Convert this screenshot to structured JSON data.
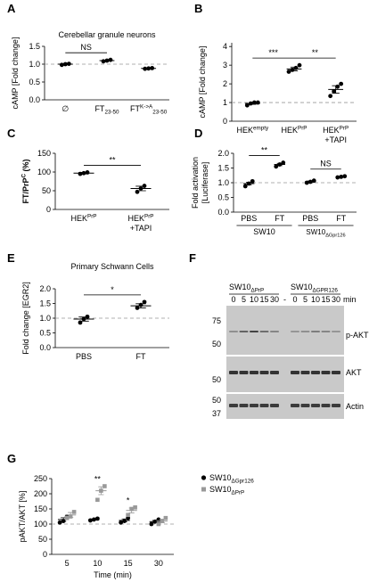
{
  "chart_data": [
    {
      "type": "dot",
      "panel": "A",
      "title": "Cerebellar granule neurons",
      "ylabel": "cAMP [Fold change]",
      "categories": [
        "∅",
        [
          "FT",
          {
            "sub": "23-50"
          }
        ],
        [
          "FT",
          {
            "sup": "K->A"
          },
          {
            "sub": "23-50"
          }
        ]
      ],
      "values": [
        1.0,
        1.1,
        0.88
      ],
      "errors": [
        0.01,
        0.01,
        0.01
      ],
      "points": [
        [
          0.98,
          1.0,
          1.01
        ],
        [
          1.08,
          1.1,
          1.12
        ],
        [
          0.87,
          0.88,
          0.89
        ]
      ],
      "color": "#000000",
      "ylim": [
        0,
        1.5
      ],
      "yticks": [
        {
          "value": 0,
          "label": "0.0"
        },
        0.5,
        {
          "value": 1,
          "label": "1.0"
        },
        1.5
      ],
      "refline": 1,
      "annotations": [
        {
          "text": "NS",
          "from": 0,
          "to": 1
        }
      ]
    },
    {
      "type": "dot",
      "panel": "B",
      "ylabel": "cAMP [Fold change]",
      "categories": [
        [
          "HEK",
          {
            "sup": "empty"
          }
        ],
        [
          "HEK",
          {
            "sup": "PrP"
          }
        ],
        [
          "HEK",
          {
            "sup": "PrP"
          },
          {
            "nl": "+TAPI"
          }
        ]
      ],
      "values": [
        0.95,
        2.8,
        1.7
      ],
      "errors": [
        0.05,
        0.1,
        0.2
      ],
      "points": [
        [
          0.85,
          0.95,
          1.0,
          1.0
        ],
        [
          2.65,
          2.75,
          2.85,
          3.0
        ],
        [
          1.35,
          1.6,
          1.85,
          2.0
        ]
      ],
      "color": "#000000",
      "ylim": [
        0,
        4.2
      ],
      "yticks": [
        0,
        1,
        2,
        3,
        4
      ],
      "refline": 1,
      "annotations": [
        {
          "text": "***",
          "from": 0,
          "to": 1
        },
        {
          "text": "**",
          "from": 1,
          "to": 2
        }
      ]
    },
    {
      "type": "dot",
      "panel": "C",
      "ylabel": [
        "FT/PrP",
        {
          "sup": "C"
        },
        " (%)"
      ],
      "categories": [
        [
          "HEK",
          {
            "sup": "PrP"
          }
        ],
        [
          "HEK",
          {
            "sup": "PrP"
          },
          {
            "nl": "+TAPI"
          }
        ]
      ],
      "values": [
        97,
        56
      ],
      "errors": [
        2,
        6
      ],
      "points": [
        [
          95,
          97,
          99
        ],
        [
          47,
          56,
          63
        ]
      ],
      "color": "#000000",
      "ylim": [
        0,
        150
      ],
      "yticks": [
        0,
        50,
        100,
        150
      ],
      "annotations": [
        {
          "text": "**",
          "from": 0,
          "to": 1
        }
      ]
    },
    {
      "type": "dot",
      "panel": "D",
      "ylabel": [
        "Fold activation",
        {
          "nl": "[Luciferase]"
        }
      ],
      "categories": [
        "PBS",
        "FT",
        "PBS",
        "FT"
      ],
      "groups": [
        {
          "label": "SW10",
          "from": 0,
          "to": 1
        },
        {
          "label": [
            "SW10",
            {
              "sub": "ΔGpr126"
            }
          ],
          "from": 2,
          "to": 3
        }
      ],
      "values": [
        0.97,
        1.62,
        1.03,
        1.2
      ],
      "errors": [
        0.05,
        0.04,
        0.03,
        0.02
      ],
      "points": [
        [
          0.88,
          0.97,
          1.05
        ],
        [
          1.55,
          1.62,
          1.68
        ],
        [
          1.0,
          1.03,
          1.07
        ],
        [
          1.18,
          1.2,
          1.22
        ]
      ],
      "color": "#000000",
      "ylim": [
        0,
        2
      ],
      "yticks": [
        {
          "value": 0,
          "label": "0.0"
        },
        0.5,
        {
          "value": 1,
          "label": "1.0"
        },
        1.5,
        {
          "value": 2,
          "label": "2.0"
        }
      ],
      "refline": 1,
      "annotations": [
        {
          "text": "**",
          "from": 0,
          "to": 1
        },
        {
          "text": "NS",
          "from": 2,
          "to": 3
        }
      ]
    },
    {
      "type": "dot",
      "panel": "E",
      "title": "Primary Schwann Cells",
      "ylabel": "Fold change [EGR2]",
      "categories": [
        "PBS",
        "FT"
      ],
      "values": [
        0.97,
        1.42
      ],
      "errors": [
        0.07,
        0.07
      ],
      "points": [
        [
          0.85,
          0.97,
          1.05
        ],
        [
          1.35,
          1.45,
          1.55
        ]
      ],
      "color": "#000000",
      "ylim": [
        0,
        2
      ],
      "yticks": [
        {
          "value": 0,
          "label": "0.0"
        },
        0.5,
        {
          "value": 1,
          "label": "1.0"
        },
        1.5,
        {
          "value": 2,
          "label": "2.0"
        }
      ],
      "refline": 1,
      "annotations": [
        {
          "text": "*",
          "from": 0,
          "to": 1
        }
      ]
    },
    {
      "type": "dot",
      "panel": "G",
      "ylabel": "pAKT/AKT [%]",
      "xlabel": "Time (min)",
      "categories": [
        5,
        10,
        15,
        30
      ],
      "series": [
        {
          "name": [
            "SW10",
            {
              "sub": "ΔGpr126"
            }
          ],
          "color": "#000000",
          "marker": "circle",
          "values": [
            115,
            115,
            112,
            108
          ],
          "errors": [
            6,
            2,
            5,
            4
          ],
          "points": [
            [
              105,
              110,
              125
            ],
            [
              112,
              115,
              118
            ],
            [
              105,
              110,
              120
            ],
            [
              100,
              108,
              115
            ]
          ]
        },
        {
          "name": [
            "SW10",
            {
              "sub": "ΔPrP"
            }
          ],
          "color": "#999999",
          "marker": "square",
          "values": [
            130,
            210,
            145,
            110
          ],
          "errors": [
            8,
            13,
            8,
            6
          ],
          "points": [
            [
              120,
              125,
              140
            ],
            [
              180,
              210,
              225
            ],
            [
              130,
              150,
              155
            ],
            [
              100,
              110,
              120
            ]
          ]
        }
      ],
      "ylim": [
        0,
        250
      ],
      "yticks": [
        0,
        50,
        100,
        150,
        200,
        250
      ],
      "refline": 100,
      "annotations": [
        {
          "text": "**",
          "at": 1
        },
        {
          "text": "*",
          "at": 2
        }
      ]
    }
  ],
  "blot": {
    "panel": "F",
    "groups": [
      {
        "label": [
          "SW10",
          {
            "sub": "ΔPrP"
          }
        ]
      },
      {
        "label": [
          "SW10",
          {
            "sub": "ΔGPR126"
          }
        ]
      }
    ],
    "lanes": [
      "0",
      "5",
      "10",
      "15",
      "30",
      "-",
      "0",
      "5",
      "10",
      "15",
      "30"
    ],
    "unit": "min",
    "markers": [
      "75",
      "50",
      "50",
      "50",
      "37"
    ],
    "bands": [
      "p-AKT",
      "AKT",
      "Actin"
    ]
  }
}
